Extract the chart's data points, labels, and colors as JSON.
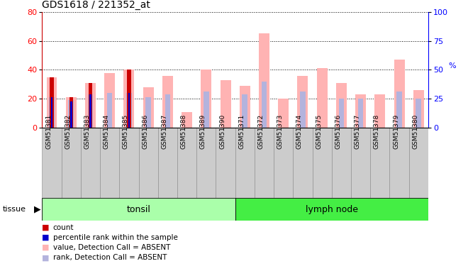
{
  "title": "GDS1618 / 221352_at",
  "samples": [
    "GSM51381",
    "GSM51382",
    "GSM51383",
    "GSM51384",
    "GSM51385",
    "GSM51386",
    "GSM51387",
    "GSM51388",
    "GSM51389",
    "GSM51390",
    "GSM51371",
    "GSM51372",
    "GSM51373",
    "GSM51374",
    "GSM51375",
    "GSM51376",
    "GSM51377",
    "GSM51378",
    "GSM51379",
    "GSM51380"
  ],
  "absent_value": [
    35,
    21,
    31,
    38,
    40,
    28,
    36,
    11,
    40,
    33,
    29,
    65,
    20,
    36,
    41,
    31,
    23,
    23,
    47,
    26
  ],
  "absent_rank": [
    21,
    19,
    23,
    24,
    24,
    21,
    23,
    0,
    25,
    0,
    23,
    32,
    0,
    25,
    0,
    20,
    20,
    0,
    25,
    20
  ],
  "count_value": [
    35,
    21,
    31,
    0,
    40,
    0,
    0,
    0,
    0,
    0,
    0,
    0,
    0,
    0,
    0,
    0,
    0,
    0,
    0,
    0
  ],
  "pct_rank": [
    21,
    18,
    23,
    0,
    24,
    0,
    0,
    0,
    0,
    0,
    0,
    0,
    0,
    0,
    0,
    0,
    0,
    0,
    0,
    0
  ],
  "tissue_groups": [
    {
      "label": "tonsil",
      "start": 0,
      "end": 10,
      "color": "#aaffaa"
    },
    {
      "label": "lymph node",
      "start": 10,
      "end": 20,
      "color": "#44ee44"
    }
  ],
  "ylim_left": [
    0,
    80
  ],
  "ylim_right": [
    0,
    100
  ],
  "yticks_left": [
    0,
    20,
    40,
    60,
    80
  ],
  "yticks_right": [
    0,
    25,
    50,
    75,
    100
  ],
  "absent_value_color": "#ffb3b3",
  "absent_rank_color": "#b3b3dd",
  "count_color": "#cc0000",
  "pct_color": "#0000cc",
  "title_fontsize": 10,
  "col_bg_color": "#cccccc",
  "col_border_color": "#888888"
}
